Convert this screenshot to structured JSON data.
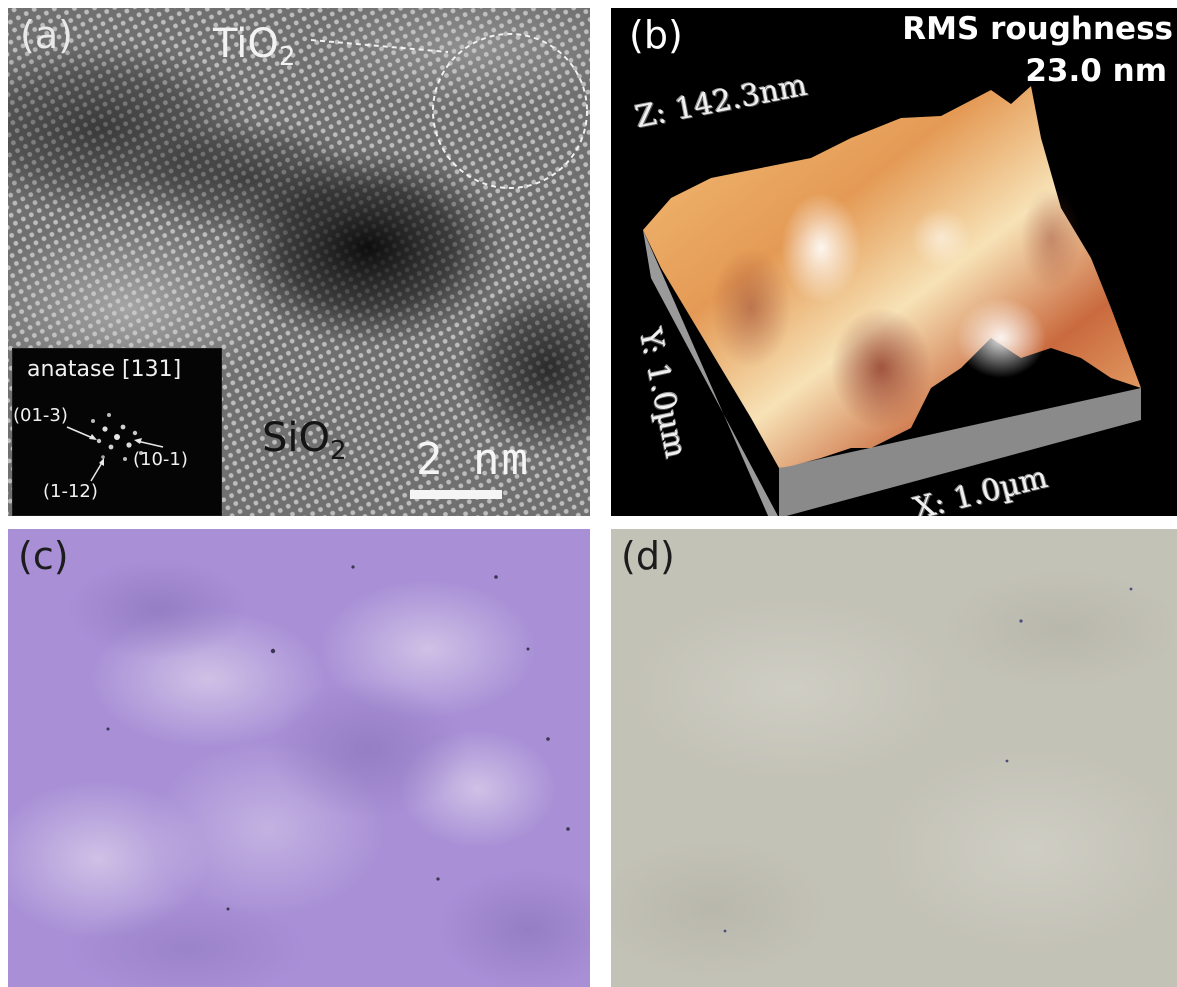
{
  "panels": {
    "a": {
      "label": "(a)",
      "tio2_text": "TiO",
      "tio2_sub": "2",
      "sio2_text": "SiO",
      "sio2_sub": "2",
      "scale_bar_text": "2  nm",
      "inset": {
        "title": "anatase [131]",
        "index_1": "(01-3)",
        "index_2": "(10-1)",
        "index_3": "(1-12)"
      }
    },
    "b": {
      "label": "(b)",
      "rms_line1": "RMS roughness",
      "rms_line2": "23.0 nm",
      "z_axis": "Z: 142.3nm",
      "y_axis": "Y: 1.0µm",
      "x_axis": "X: 1.0µm"
    },
    "c": {
      "label": "(c)"
    },
    "d": {
      "label": "(d)"
    }
  },
  "colors": {
    "tem_gray": "#6e6e6e",
    "afm_background": "#000000",
    "afm_surface": "#e0a060",
    "afm_base": "#8c8c8c",
    "micrograph_purple": "#a88fd6",
    "micrograph_gray": "#c3c2b7"
  }
}
